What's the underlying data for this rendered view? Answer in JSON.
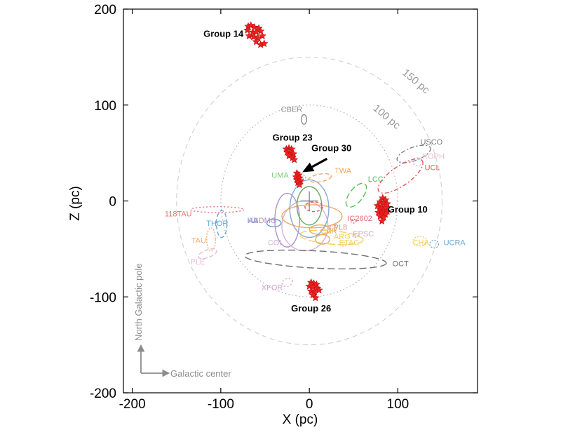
{
  "chart_data": {
    "type": "scatter",
    "xlabel": "X (pc)",
    "ylabel": "Z (pc)",
    "xlim": [
      -210,
      190
    ],
    "ylim": [
      -200,
      200
    ],
    "x_ticks": [
      -200,
      -100,
      0,
      100
    ],
    "y_ticks": [
      -200,
      -100,
      0,
      100,
      200
    ],
    "x_tick_labels": [
      "-200",
      "-100",
      "0",
      "100"
    ],
    "y_tick_labels": [
      "-200",
      "-100",
      "0",
      "100",
      "200"
    ],
    "grid": false,
    "legend": "none",
    "reference_circles": [
      {
        "label": "100 pc",
        "r": 100,
        "style": "dotted",
        "label_x": 85,
        "label_y": 85
      },
      {
        "label": "150 pc",
        "r": 150,
        "style": "dashed",
        "label_x": 118,
        "label_y": 122
      }
    ],
    "star_color": "#ee2222",
    "groups": [
      {
        "name": "Group 14",
        "label_x": -97,
        "label_y": 171,
        "points": [
          [
            -69,
            182
          ],
          [
            -66,
            183
          ],
          [
            -62,
            181
          ],
          [
            -57,
            180
          ],
          [
            -70,
            178
          ],
          [
            -64,
            176
          ],
          [
            -60,
            176
          ],
          [
            -55,
            177
          ],
          [
            -68,
            172
          ],
          [
            -63,
            171
          ],
          [
            -58,
            170
          ],
          [
            -53,
            172
          ],
          [
            -60,
            166
          ],
          [
            -55,
            163
          ],
          [
            -51,
            164
          ]
        ]
      },
      {
        "name": "Group 23",
        "label_x": -19,
        "label_y": 63,
        "points": [
          [
            -26,
            54
          ],
          [
            -23,
            55
          ],
          [
            -20,
            54
          ],
          [
            -25,
            51
          ],
          [
            -21,
            50
          ],
          [
            -18,
            49
          ],
          [
            -23,
            47
          ],
          [
            -19,
            45
          ],
          [
            -17,
            43
          ]
        ]
      },
      {
        "name": "Group 30",
        "label_x": 25,
        "label_y": 52,
        "points": [
          [
            -14,
            29
          ],
          [
            -12,
            27
          ],
          [
            -15,
            25
          ],
          [
            -11,
            24
          ],
          [
            -14,
            22
          ],
          [
            -10,
            21
          ],
          [
            -13,
            19
          ],
          [
            -11,
            17
          ]
        ]
      },
      {
        "name": "Group 10",
        "label_x": 111,
        "label_y": -12,
        "points": [
          [
            83,
            3
          ],
          [
            86,
            1
          ],
          [
            80,
            -1
          ],
          [
            84,
            -2
          ],
          [
            88,
            -3
          ],
          [
            77,
            -5
          ],
          [
            82,
            -6
          ],
          [
            86,
            -7
          ],
          [
            80,
            -9
          ],
          [
            84,
            -10
          ],
          [
            88,
            -11
          ],
          [
            78,
            -12
          ],
          [
            82,
            -13
          ],
          [
            86,
            -14
          ],
          [
            80,
            -16
          ],
          [
            84,
            -17
          ],
          [
            82,
            -21
          ]
        ]
      },
      {
        "name": "Group 26",
        "label_x": 2,
        "label_y": -115,
        "points": [
          [
            2,
            -85
          ],
          [
            5,
            -86
          ],
          [
            8,
            -87
          ],
          [
            0,
            -89
          ],
          [
            4,
            -90
          ],
          [
            9,
            -91
          ],
          [
            2,
            -94
          ],
          [
            6,
            -95
          ],
          [
            11,
            -93
          ],
          [
            4,
            -98
          ],
          [
            7,
            -101
          ]
        ]
      }
    ],
    "arrow": {
      "from_x": 20,
      "from_y": 44,
      "to_x": -8,
      "to_y": 30
    },
    "associations": [
      {
        "name": "CBER",
        "label_x": -20,
        "label_y": 93,
        "color": "#8c8c8c",
        "cx": -6,
        "cy": 85,
        "rx": 3,
        "ry": 5,
        "rot": 0,
        "dash": "none"
      },
      {
        "name": "USCO",
        "label_x": 138,
        "label_y": 59,
        "color": "#7a7a7a",
        "cx": 118,
        "cy": 49,
        "rx": 20,
        "ry": 7,
        "rot": 20,
        "dash": "6 3 2 3"
      },
      {
        "name": "ROPH",
        "label_x": 140,
        "label_y": 44,
        "color": "#e4bcd4",
        "cx": 122,
        "cy": 41,
        "rx": 6,
        "ry": 4,
        "rot": 0,
        "dash": "2 3"
      },
      {
        "name": "UCL",
        "label_x": 139,
        "label_y": 32,
        "color": "#e05a5a",
        "cx": 103,
        "cy": 26,
        "rx": 30,
        "ry": 10,
        "rot": 35,
        "dash": "6 3 2 3"
      },
      {
        "name": "LCC",
        "label_x": 75,
        "label_y": 20,
        "color": "#55bb55",
        "cx": 53,
        "cy": 6,
        "rx": 16,
        "ry": 7,
        "rot": 52,
        "dash": "8 4"
      },
      {
        "name": "TWA",
        "label_x": 38,
        "label_y": 29,
        "color": "#f0a860",
        "cx": 12,
        "cy": 24,
        "rx": 13,
        "ry": 4,
        "rot": 10,
        "dash": "6 3"
      },
      {
        "name": "UMA",
        "label_x": -33,
        "label_y": 24,
        "color": "#77cc77",
        "cx": -8,
        "cy": 25,
        "rx": 4,
        "ry": 2,
        "rot": 0,
        "dash": "2 2"
      },
      {
        "name": "118TAU",
        "label_x": -148,
        "label_y": -16,
        "color": "#e07878",
        "cx": -104,
        "cy": -9,
        "rx": 30,
        "ry": 3,
        "rot": 0,
        "dash": "2 3"
      },
      {
        "name": "THOR",
        "label_x": -104,
        "label_y": -26,
        "color": "#6aa8d8",
        "cx": -99,
        "cy": -24,
        "rx": 6,
        "ry": 14,
        "rot": 0,
        "dash": "6 3"
      },
      {
        "name": "HA",
        "label_x": -64,
        "label_y": -23,
        "color": "#6a9ac8",
        "cx": -40,
        "cy": -23,
        "rx": 8,
        "ry": 4,
        "rot": 0,
        "dash": "none"
      },
      {
        "name": "ABDMG",
        "label_x": -53,
        "label_y": -23,
        "color": "#b090d0",
        "cx": -25,
        "cy": -20,
        "rx": 14,
        "ry": 28,
        "rot": 0,
        "dash": "none"
      },
      {
        "name": "TAU",
        "label_x": -125,
        "label_y": -44,
        "color": "#f0b070",
        "cx": -111,
        "cy": -40,
        "rx": 5,
        "ry": 12,
        "rot": 0,
        "dash": "2 2"
      },
      {
        "name": "PLE",
        "label_x": -126,
        "label_y": -66,
        "color": "#e4bcd4",
        "cx": -115,
        "cy": -55,
        "rx": 11,
        "ry": 4,
        "rot": 20,
        "dash": "6 3"
      },
      {
        "name": "COL",
        "label_x": -38,
        "label_y": -46,
        "color": "#d8b0d8",
        "cx": -5,
        "cy": -26,
        "rx": 26,
        "ry": 26,
        "rot": 0,
        "dash": "none"
      },
      {
        "name": "CAR",
        "label_x": 22,
        "label_y": -34,
        "color": "#e8b058",
        "cx": 12,
        "cy": -30,
        "rx": 12,
        "ry": 5,
        "rot": 0,
        "dash": "none"
      },
      {
        "name": "PL8",
        "label_x": 35,
        "label_y": -30,
        "color": "#e09090",
        "cx": 27,
        "cy": -28,
        "rx": 4,
        "ry": 3,
        "rot": 0,
        "dash": "2 2"
      },
      {
        "name": "ETAC",
        "label_x": 45,
        "label_y": -46,
        "color": "#f5d060",
        "cx": 38,
        "cy": -45,
        "rx": 3,
        "ry": 2,
        "rot": 0,
        "dash": "2 2"
      },
      {
        "name": "EPSC",
        "label_x": 61,
        "label_y": -37,
        "color": "#c8a8c8",
        "cx": 52,
        "cy": -36,
        "rx": 3,
        "ry": 2,
        "rot": 0,
        "dash": "2 2"
      },
      {
        "name": "IC2602",
        "label_x": 57,
        "label_y": -21,
        "color": "#e07070",
        "cx": 50,
        "cy": -21,
        "rx": 3,
        "ry": 2,
        "rot": 0,
        "dash": "2 2"
      },
      {
        "name": "ARG",
        "label_x": 37,
        "label_y": -40,
        "color": "#f5d060",
        "cx": 25,
        "cy": -38,
        "rx": 36,
        "ry": 7,
        "rot": -5,
        "dash": "10 4"
      },
      {
        "name": "OCT",
        "label_x": 103,
        "label_y": -68,
        "color": "#707070",
        "cx": 7,
        "cy": -61,
        "rx": 80,
        "ry": 9,
        "rot": -3,
        "dash": "10 5"
      },
      {
        "name": "CHA",
        "label_x": 126,
        "label_y": -46,
        "color": "#f5d060",
        "cx": 125,
        "cy": -42,
        "rx": 8,
        "ry": 5,
        "rot": 0,
        "dash": "2 2"
      },
      {
        "name": "UCRA",
        "label_x": 164,
        "label_y": -46,
        "color": "#6aa8d8",
        "cx": 141,
        "cy": -45,
        "rx": 5,
        "ry": 4,
        "rot": 0,
        "dash": "2 2"
      },
      {
        "name": "XFOR",
        "label_x": -42,
        "label_y": -93,
        "color": "#d8a0d8",
        "cx": -25,
        "cy": -85,
        "rx": 6,
        "ry": 4,
        "rot": 20,
        "dash": "2 3"
      }
    ],
    "core_ellipses": [
      {
        "cx": 3,
        "cy": -16,
        "rx": 34,
        "ry": 12,
        "rot": 0,
        "color": "#f0a860",
        "dash": "none"
      },
      {
        "cx": 0,
        "cy": -8,
        "rx": 22,
        "ry": 30,
        "rot": 0,
        "color": "#88aad8",
        "dash": "none"
      },
      {
        "cx": 0,
        "cy": -5,
        "rx": 14,
        "ry": 20,
        "rot": 0,
        "color": "#66aa66",
        "dash": "none"
      },
      {
        "cx": 5,
        "cy": -6,
        "rx": 10,
        "ry": 5,
        "rot": 0,
        "color": "#e05a5a",
        "dash": "4 3"
      },
      {
        "cx": 15,
        "cy": -40,
        "rx": 8,
        "ry": 5,
        "rot": 0,
        "color": "#e8b058",
        "dash": "none"
      }
    ],
    "directions": {
      "north_label": "North Galactic pole",
      "center_label": "Galactic center"
    }
  }
}
